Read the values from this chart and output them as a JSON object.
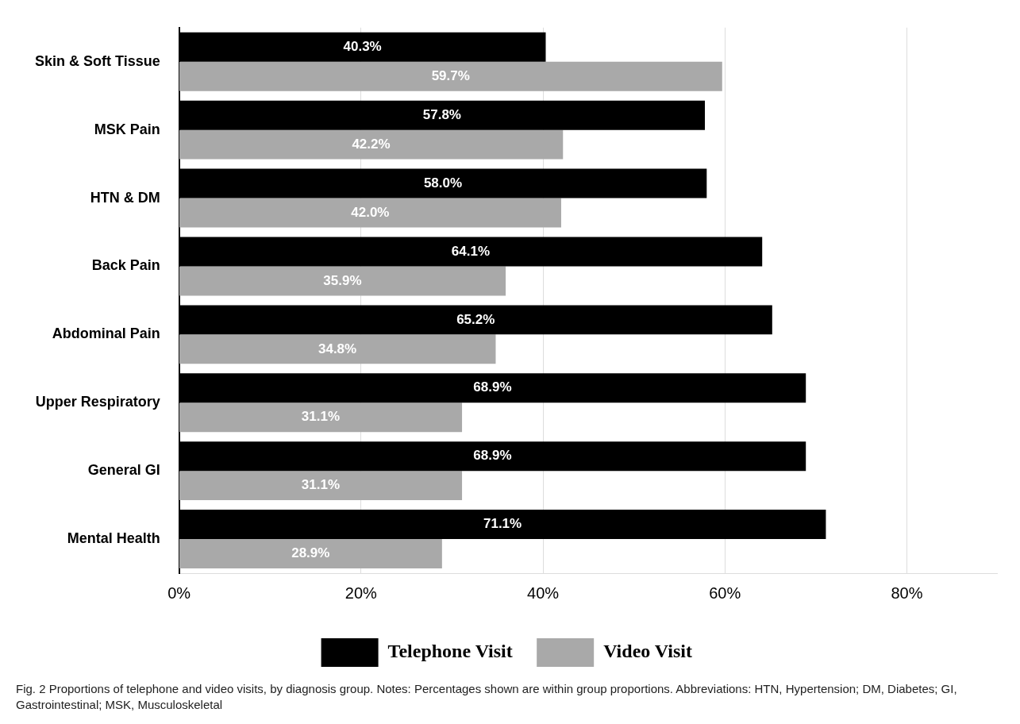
{
  "chart_data": {
    "type": "bar",
    "orientation": "horizontal",
    "categories": [
      "Skin & Soft Tissue",
      "MSK Pain",
      "HTN & DM",
      "Back Pain",
      "Abdominal Pain",
      "Upper Respiratory",
      "General GI",
      "Mental Health"
    ],
    "series": [
      {
        "name": "Telephone Visit",
        "color": "#000000",
        "values": [
          40.3,
          57.8,
          58.0,
          64.1,
          65.2,
          68.9,
          68.9,
          71.1
        ],
        "value_labels": [
          "40.3%",
          "57.8%",
          "58.0%",
          "64.1%",
          "65.2%",
          "68.9%",
          "68.9%",
          "71.1%"
        ]
      },
      {
        "name": "Video Visit",
        "color": "#a9a9a9",
        "values": [
          59.7,
          42.2,
          42.0,
          35.9,
          34.8,
          31.1,
          31.1,
          28.9
        ],
        "value_labels": [
          "59.7%",
          "42.2%",
          "42.0%",
          "35.9%",
          "34.8%",
          "31.1%",
          "31.1%",
          "28.9%"
        ]
      }
    ],
    "xlim": [
      0,
      90
    ],
    "xticks": [
      {
        "value": 0,
        "label": "0%"
      },
      {
        "value": 20,
        "label": "20%"
      },
      {
        "value": 40,
        "label": "40%"
      },
      {
        "value": 60,
        "label": "60%"
      },
      {
        "value": 80,
        "label": "80%"
      }
    ],
    "grid": "x",
    "legend": "bottom",
    "annotations": [
      "Fig. 2 Proportions of telephone and video visits, by diagnosis group. Notes: Percentages shown are within group proportions. Abbreviations: HTN, Hypertension; DM, Diabetes; GI, Gastrointestinal; MSK, Musculoskeletal"
    ]
  }
}
